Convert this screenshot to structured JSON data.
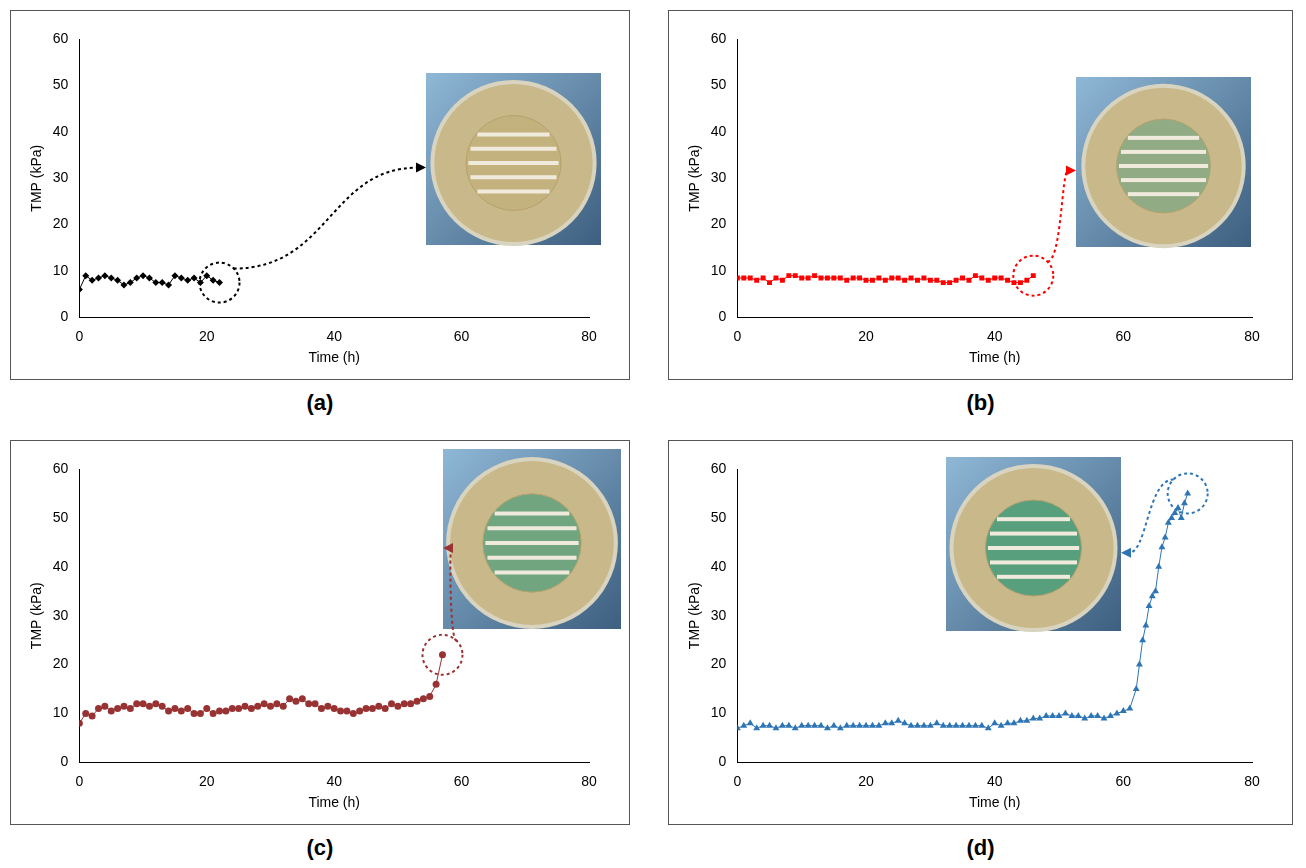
{
  "chart_data": [
    {
      "type": "line",
      "title": "(a)",
      "x_label": "Time (h)",
      "y_label": "TMP (kPa)",
      "color": "#000000",
      "marker": "diamond",
      "line_style": "solid",
      "grid": false,
      "xlim": [
        0,
        80
      ],
      "xticks": [
        0,
        20,
        40,
        60,
        80
      ],
      "ylim": [
        0,
        60
      ],
      "yticks": [
        0,
        10,
        20,
        30,
        40,
        50,
        60
      ],
      "x": [
        0,
        1,
        2,
        3,
        4,
        5,
        6,
        7,
        8,
        9,
        10,
        11,
        12,
        13,
        14,
        15,
        16,
        17,
        18,
        19,
        20,
        21,
        22
      ],
      "values": [
        6,
        9,
        8,
        8.5,
        9,
        8.5,
        8,
        7,
        7.5,
        8.5,
        9,
        8.5,
        7.5,
        7.5,
        7,
        9,
        8.5,
        8,
        8.5,
        7.5,
        9,
        8,
        7.5
      ]
    },
    {
      "type": "line",
      "title": "(b)",
      "x_label": "Time (h)",
      "y_label": "TMP (kPa)",
      "color": "#ff0000",
      "marker": "square",
      "line_style": "solid",
      "grid": false,
      "xlim": [
        0,
        80
      ],
      "xticks": [
        0,
        20,
        40,
        60,
        80
      ],
      "ylim": [
        0,
        60
      ],
      "yticks": [
        0,
        10,
        20,
        30,
        40,
        50,
        60
      ],
      "x": [
        0,
        1,
        2,
        3,
        4,
        5,
        6,
        7,
        8,
        9,
        10,
        11,
        12,
        13,
        14,
        15,
        16,
        17,
        18,
        19,
        20,
        21,
        22,
        23,
        24,
        25,
        26,
        27,
        28,
        29,
        30,
        31,
        32,
        33,
        34,
        35,
        36,
        37,
        38,
        39,
        40,
        41,
        42,
        43,
        44,
        45,
        46
      ],
      "values": [
        8.5,
        8.5,
        8.5,
        8,
        8.5,
        7.5,
        8.5,
        8,
        9,
        9,
        8.5,
        8.5,
        9,
        8.5,
        8.5,
        8.5,
        8.5,
        8,
        8.5,
        8.5,
        8,
        8,
        8.5,
        8,
        8.5,
        8.5,
        8,
        8.5,
        8,
        8.5,
        8,
        8,
        7.5,
        7.5,
        8,
        8.5,
        8,
        9,
        8.5,
        8,
        8.5,
        8.5,
        8,
        7.5,
        7.5,
        8,
        9
      ]
    },
    {
      "type": "line",
      "title": "(c)",
      "x_label": "Time (h)",
      "y_label": "TMP (kPa)",
      "color": "#993333",
      "marker": "circle",
      "line_style": "solid",
      "grid": false,
      "xlim": [
        0,
        80
      ],
      "xticks": [
        0,
        20,
        40,
        60,
        80
      ],
      "ylim": [
        0,
        60
      ],
      "yticks": [
        0,
        10,
        20,
        30,
        40,
        50,
        60
      ],
      "x": [
        0,
        1,
        2,
        3,
        4,
        5,
        6,
        7,
        8,
        9,
        10,
        11,
        12,
        13,
        14,
        15,
        16,
        17,
        18,
        19,
        20,
        21,
        22,
        23,
        24,
        25,
        26,
        27,
        28,
        29,
        30,
        31,
        32,
        33,
        34,
        35,
        36,
        37,
        38,
        39,
        40,
        41,
        42,
        43,
        44,
        45,
        46,
        47,
        48,
        49,
        50,
        51,
        52,
        53,
        54,
        55,
        56,
        57
      ],
      "values": [
        8,
        10,
        9.5,
        11,
        11.5,
        10.5,
        11,
        11.5,
        11,
        12,
        12,
        11.5,
        12,
        11.5,
        10.5,
        11,
        10.5,
        11,
        10,
        10,
        11,
        10,
        10.5,
        10.5,
        11,
        11,
        11.5,
        11,
        11.5,
        12,
        11.5,
        12,
        11.5,
        13,
        12.5,
        13,
        12,
        12,
        11,
        11.5,
        11,
        10.5,
        10.5,
        10,
        10.5,
        11,
        11,
        11.5,
        11,
        12,
        11.5,
        12,
        12,
        12.5,
        13,
        13.5,
        16,
        22
      ]
    },
    {
      "type": "line",
      "title": "(d)",
      "x_label": "Time (h)",
      "y_label": "TMP (kPa)",
      "color": "#2e75b6",
      "marker": "triangle",
      "line_style": "solid",
      "grid": false,
      "xlim": [
        0,
        80
      ],
      "xticks": [
        0,
        20,
        40,
        60,
        80
      ],
      "ylim": [
        0,
        60
      ],
      "yticks": [
        0,
        10,
        20,
        30,
        40,
        50,
        60
      ],
      "x": [
        0,
        1,
        2,
        3,
        4,
        5,
        6,
        7,
        8,
        9,
        10,
        11,
        12,
        13,
        14,
        15,
        16,
        17,
        18,
        19,
        20,
        21,
        22,
        23,
        24,
        25,
        26,
        27,
        28,
        29,
        30,
        31,
        32,
        33,
        34,
        35,
        36,
        37,
        38,
        39,
        40,
        41,
        42,
        43,
        44,
        45,
        46,
        47,
        48,
        49,
        50,
        51,
        52,
        53,
        54,
        55,
        56,
        57,
        58,
        59,
        60,
        61,
        62,
        62.5,
        63,
        63.5,
        64,
        64.5,
        65,
        65.5,
        66,
        66.5,
        67,
        67.5,
        68,
        68.5,
        69,
        69.5,
        70
      ],
      "values": [
        7,
        7.5,
        8,
        7,
        7.5,
        7.5,
        7,
        7.5,
        7.5,
        7,
        7.5,
        7.5,
        7.5,
        7.5,
        7,
        7.5,
        7,
        7.5,
        7.5,
        7.5,
        7.5,
        7.5,
        7.5,
        8,
        8,
        8.5,
        8,
        7.5,
        7.5,
        7.5,
        7.5,
        8,
        7.5,
        7.5,
        7.5,
        7.5,
        7.5,
        7.5,
        7.5,
        7,
        8,
        7.5,
        8,
        8,
        8.5,
        8.5,
        9,
        9,
        9.5,
        9.5,
        9.5,
        10,
        9.5,
        9.5,
        9,
        9.5,
        9.5,
        9,
        9.5,
        10,
        10.5,
        11,
        15,
        20,
        25,
        28,
        32,
        34,
        35,
        40,
        44,
        46,
        49,
        50,
        51,
        52,
        50,
        53,
        55
      ]
    }
  ]
}
